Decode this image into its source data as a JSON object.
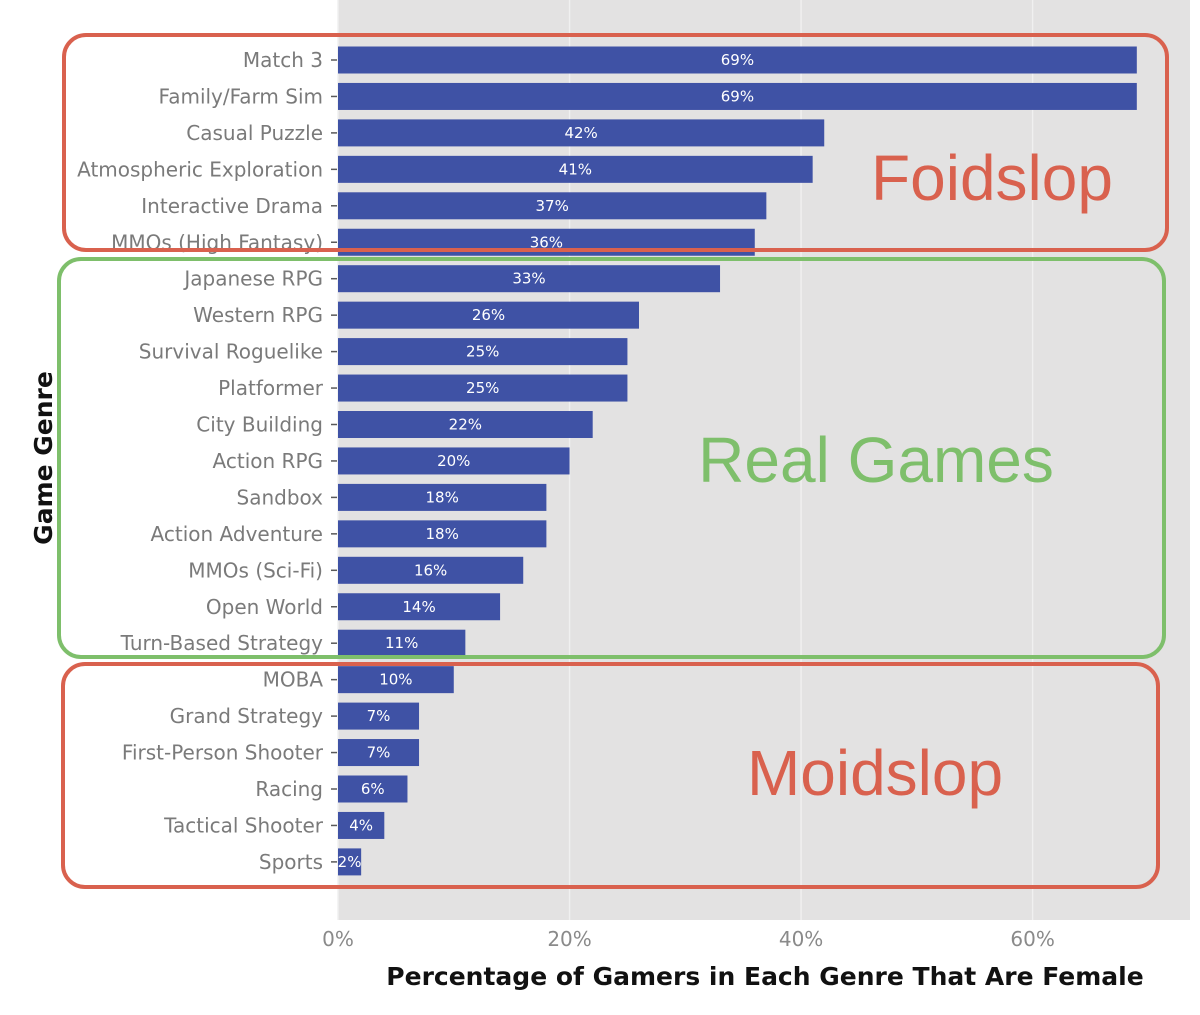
{
  "colors": {
    "panel_bg": "#e3e2e2",
    "grid_line": "#f0f0f0",
    "bar_fill": "#3f52a5",
    "tick_mark": "#5a5a5a",
    "foidslop_box": "#d9614e",
    "real_games_box": "#7ebf6b",
    "moidslop_box": "#d9614e"
  },
  "chart_data": {
    "type": "bar",
    "orientation": "horizontal",
    "categories": [
      "Match 3",
      "Family/Farm Sim",
      "Casual Puzzle",
      "Atmospheric Exploration",
      "Interactive Drama",
      "MMOs (High Fantasy)",
      "Japanese RPG",
      "Western RPG",
      "Survival Roguelike",
      "Platformer",
      "City Building",
      "Action RPG",
      "Sandbox",
      "Action Adventure",
      "MMOs (Sci-Fi)",
      "Open World",
      "Turn-Based Strategy",
      "MOBA",
      "Grand Strategy",
      "First-Person Shooter",
      "Racing",
      "Tactical Shooter",
      "Sports"
    ],
    "values": [
      69,
      69,
      42,
      41,
      37,
      36,
      33,
      26,
      25,
      25,
      22,
      20,
      18,
      18,
      16,
      14,
      11,
      10,
      7,
      7,
      6,
      4,
      2
    ],
    "value_labels": [
      "69%",
      "69%",
      "42%",
      "41%",
      "37%",
      "36%",
      "33%",
      "26%",
      "25%",
      "25%",
      "22%",
      "20%",
      "18%",
      "18%",
      "16%",
      "14%",
      "11%",
      "10%",
      "7%",
      "7%",
      "6%",
      "4%",
      "2%"
    ],
    "xlabel": "Percentage of Gamers in Each Genre That Are Female",
    "ylabel": "Game Genre",
    "xlim": [
      0,
      72
    ],
    "x_ticks": [
      0,
      20,
      40,
      60
    ],
    "x_tick_labels": [
      "0%",
      "20%",
      "40%",
      "60%"
    ],
    "grid": true,
    "annotations": [
      {
        "text": "Foidslop",
        "categories": [
          "Match 3",
          "Family/Farm Sim",
          "Casual Puzzle",
          "Atmospheric Exploration",
          "Interactive Drama",
          "MMOs (High Fantasy)"
        ]
      },
      {
        "text": "Real Games",
        "categories": [
          "Japanese RPG",
          "Western RPG",
          "Survival Roguelike",
          "Platformer",
          "City Building",
          "Action RPG",
          "Sandbox",
          "Action Adventure",
          "MMOs (Sci-Fi)",
          "Open World",
          "Turn-Based Strategy"
        ]
      },
      {
        "text": "Moidslop",
        "categories": [
          "MOBA",
          "Grand Strategy",
          "First-Person Shooter",
          "Racing",
          "Tactical Shooter",
          "Sports"
        ]
      }
    ]
  }
}
